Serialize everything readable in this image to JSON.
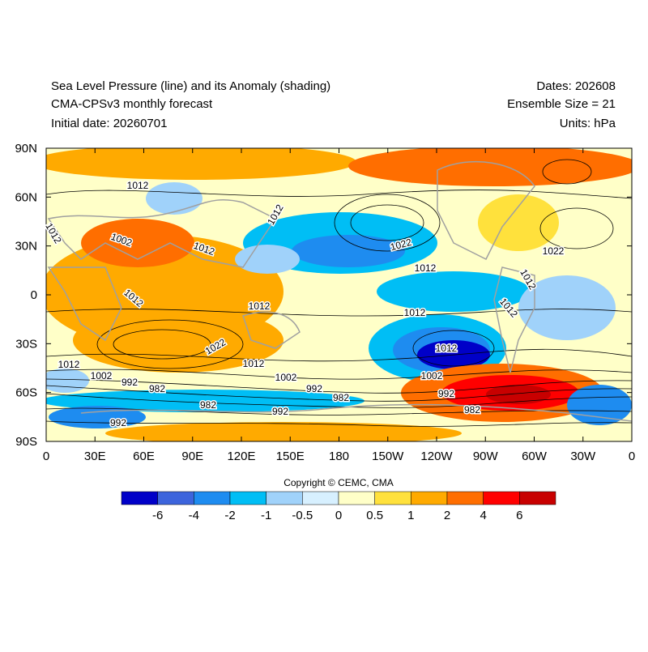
{
  "header": {
    "left": [
      "Sea Level Pressure (line) and its Anomaly (shading)",
      "CMA-CPSv3 monthly forecast",
      "Initial date: 20260701"
    ],
    "right": [
      "Dates: 202608",
      "Ensemble Size = 21",
      "Units: hPa"
    ]
  },
  "map": {
    "lat_labels": [
      "90N",
      "60N",
      "30N",
      "0",
      "30S",
      "60S",
      "90S"
    ],
    "lon_labels": [
      "0",
      "30E",
      "60E",
      "90E",
      "120E",
      "150E",
      "180",
      "150W",
      "120W",
      "90W",
      "60W",
      "30W",
      "0"
    ],
    "contour_labels": [
      "1012",
      "1012",
      "1002",
      "1012",
      "1012",
      "1022",
      "1012",
      "1022",
      "1012",
      "1012",
      "1012",
      "1012",
      "1012",
      "1012",
      "1022",
      "1012",
      "1012",
      "1002",
      "992",
      "982",
      "1002",
      "992",
      "982",
      "1002",
      "992",
      "982",
      "982",
      "992",
      "992"
    ]
  },
  "copyright": "Copyright © CEMC, CMA",
  "colorbar": {
    "ticks": [
      -6,
      -4,
      -2,
      -1,
      -0.5,
      0,
      0.5,
      1,
      2,
      4,
      6
    ],
    "colors": [
      "#0000c8",
      "#3c64dc",
      "#1e8cf0",
      "#00bef5",
      "#a0d2fa",
      "#d7f0ff",
      "#ffffc8",
      "#ffe13c",
      "#ffaa00",
      "#ff6e00",
      "#ff0000",
      "#c80000"
    ]
  }
}
